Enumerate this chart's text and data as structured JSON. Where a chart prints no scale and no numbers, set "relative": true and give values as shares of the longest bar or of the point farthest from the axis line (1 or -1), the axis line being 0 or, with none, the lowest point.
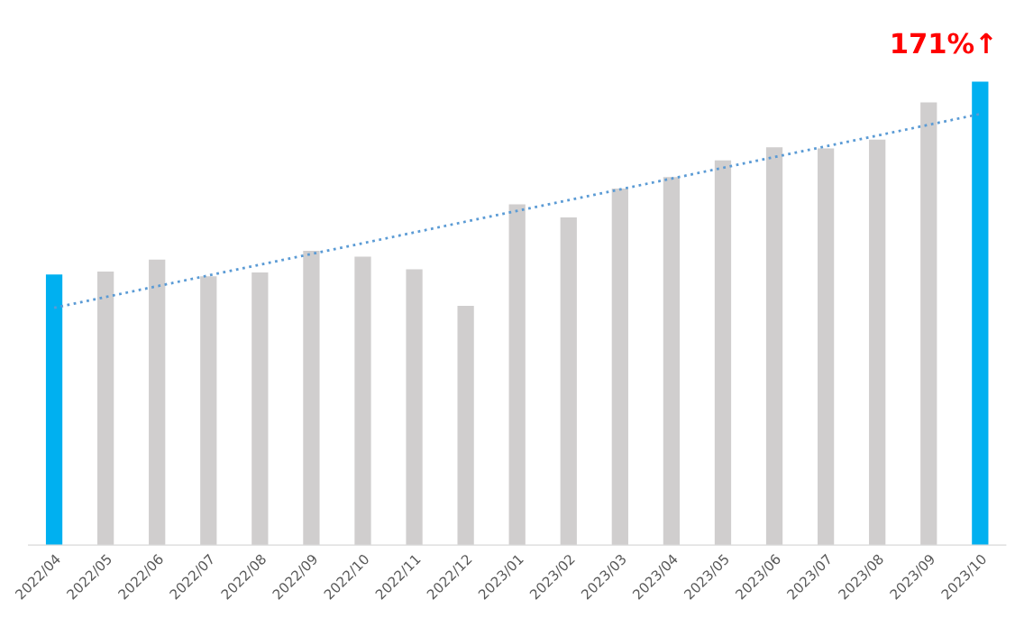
{
  "chart_data": {
    "type": "bar",
    "relative": true,
    "categories": [
      "2022/04",
      "2022/05",
      "2022/06",
      "2022/07",
      "2022/08",
      "2022/09",
      "2022/10",
      "2022/11",
      "2022/12",
      "2023/01",
      "2023/02",
      "2023/03",
      "2023/04",
      "2023/05",
      "2023/06",
      "2023/07",
      "2023/08",
      "2023/09",
      "2023/10"
    ],
    "series": [
      {
        "values": [
          0.584,
          0.59,
          0.616,
          0.58,
          0.588,
          0.635,
          0.622,
          0.595,
          0.516,
          0.735,
          0.707,
          0.769,
          0.794,
          0.83,
          0.858,
          0.856,
          0.875,
          0.955,
          1.0
        ],
        "colors": [
          "#00b0f0",
          "#d0cece",
          "#d0cece",
          "#d0cece",
          "#d0cece",
          "#d0cece",
          "#d0cece",
          "#d0cece",
          "#d0cece",
          "#d0cece",
          "#d0cece",
          "#d0cece",
          "#d0cece",
          "#d0cece",
          "#d0cece",
          "#d0cece",
          "#d0cece",
          "#d0cece",
          "#00b0f0"
        ]
      },
      {
        "type": "line",
        "x": [
          "2022/04",
          "2023/10"
        ],
        "values": [
          0.512,
          0.93
        ],
        "color": "#5b9bd5",
        "line_style": "dotted"
      }
    ],
    "annotations": [
      {
        "text": "171%↑",
        "x": "2023/10",
        "y": 1.0
      }
    ],
    "grid": false,
    "legend": false,
    "tick_labels": "x"
  }
}
